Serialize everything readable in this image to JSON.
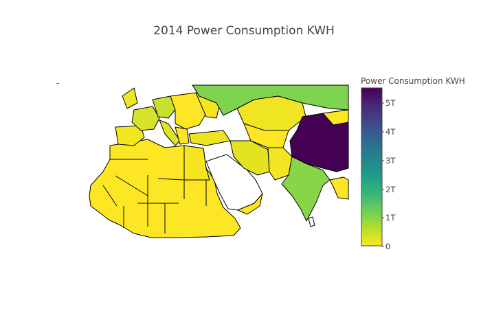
{
  "chart_data": {
    "type": "choropleth",
    "title": "2014 Power Consumption KWH",
    "colorbar": {
      "title": "Power Consumption KWH",
      "ticks": [
        "5T",
        "4T",
        "3T",
        "2T",
        "1T",
        "0"
      ],
      "range": [
        0,
        5500000000000
      ],
      "colorscale": [
        "#fde725",
        "#b5de2b",
        "#6ece58",
        "#35b779",
        "#1f9e89",
        "#26828e",
        "#31688e",
        "#3e4989",
        "#482878",
        "#440154"
      ]
    },
    "regions": [
      {
        "name": "Russia",
        "value": 1000000000000
      },
      {
        "name": "China",
        "value": 5500000000000
      },
      {
        "name": "India",
        "value": 900000000000
      },
      {
        "name": "France",
        "value": 450000000000
      },
      {
        "name": "Germany",
        "value": 500000000000
      },
      {
        "name": "Iran",
        "value": 200000000000
      },
      {
        "name": "Saudi Arabia",
        "value": null
      },
      {
        "name": "Kazakhstan",
        "value": 80000000000
      },
      {
        "name": "Turkey",
        "value": 200000000000
      },
      {
        "name": "Egypt",
        "value": 140000000000
      },
      {
        "name": "Italy",
        "value": 290000000000
      },
      {
        "name": "Spain",
        "value": 240000000000
      },
      {
        "name": "Ukraine",
        "value": 150000000000
      },
      {
        "name": "Pakistan",
        "value": 80000000000
      }
    ]
  },
  "colors": {
    "water": "#ffffff",
    "no_data": "#ffffff",
    "border": "#000000"
  }
}
